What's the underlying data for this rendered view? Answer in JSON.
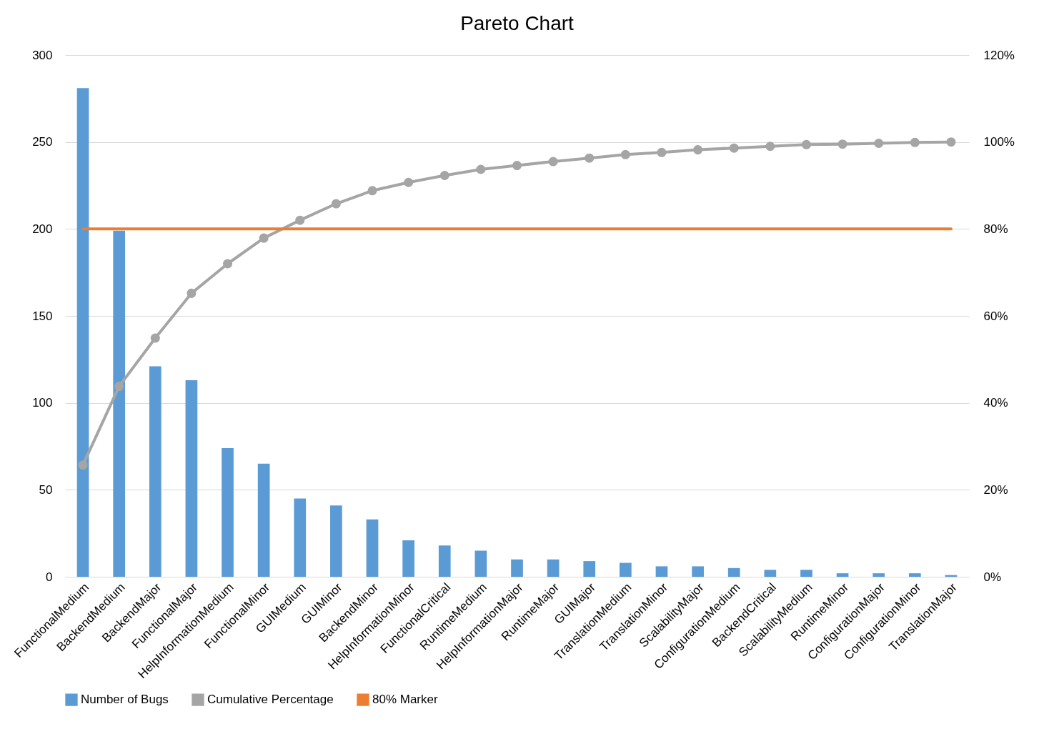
{
  "chart_data": {
    "type": "bar",
    "title": "Pareto Chart",
    "categories": [
      "FunctionalMedium",
      "BackendMedium",
      "BackendMajor",
      "FunctionalMajor",
      "HelpInformationMedium",
      "FunctionalMinor",
      "GUIMedium",
      "GUIMinor",
      "BackendMinor",
      "HelpInformationMinor",
      "FunctionalCritical",
      "RuntimeMedium",
      "HelpInformationMajor",
      "RuntimeMajor",
      "GUIMajor",
      "TranslationMedium",
      "TranslationMinor",
      "ScalabilityMajor",
      "ConfigurationMedium",
      "BackendCritical",
      "ScalabilityMedium",
      "RuntimeMinor",
      "ConfigurationMajor",
      "ConfigurationMinor",
      "TranslationMajor"
    ],
    "series": [
      {
        "name": "Number of Bugs",
        "color": "#5b9bd5",
        "values": [
          281,
          199,
          121,
          113,
          74,
          65,
          45,
          41,
          33,
          21,
          18,
          15,
          10,
          10,
          9,
          8,
          6,
          6,
          5,
          4,
          4,
          2,
          2,
          2,
          1
        ]
      },
      {
        "name": "Cumulative Percentage",
        "type": "line",
        "axis": "y2",
        "color": "#a5a5a5",
        "marker": "circle",
        "values": [
          25.7,
          43.8,
          54.9,
          65.2,
          72.0,
          77.9,
          82.0,
          85.8,
          88.8,
          90.7,
          92.3,
          93.7,
          94.6,
          95.5,
          96.3,
          97.1,
          97.6,
          98.2,
          98.6,
          99.0,
          99.4,
          99.5,
          99.7,
          99.9,
          100
        ]
      },
      {
        "name": "80% Marker",
        "type": "line",
        "axis": "y2",
        "color": "#ed7d31",
        "values": [
          80,
          80,
          80,
          80,
          80,
          80,
          80,
          80,
          80,
          80,
          80,
          80,
          80,
          80,
          80,
          80,
          80,
          80,
          80,
          80,
          80,
          80,
          80,
          80,
          80
        ]
      }
    ],
    "ylim": [
      0,
      300
    ],
    "yticks": [
      0,
      50,
      100,
      150,
      200,
      250,
      300
    ],
    "y2lim": [
      0,
      120
    ],
    "y2ticks": [
      {
        "value": 0,
        "label": "0%"
      },
      {
        "value": 20,
        "label": "20%"
      },
      {
        "value": 40,
        "label": "40%"
      },
      {
        "value": 60,
        "label": "60%"
      },
      {
        "value": 80,
        "label": "80%"
      },
      {
        "value": 100,
        "label": "100%"
      },
      {
        "value": 120,
        "label": "120%"
      }
    ],
    "grid": "y",
    "legend": "bottom"
  }
}
